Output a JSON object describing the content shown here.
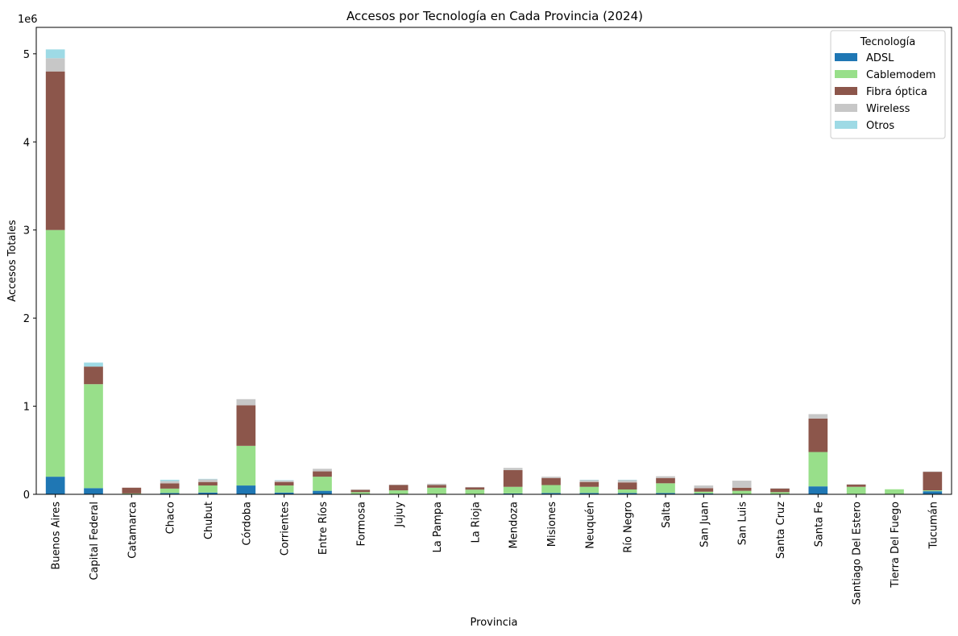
{
  "chart_data": {
    "type": "bar",
    "stacked": true,
    "title": "Accesos por Tecnología en Cada Provincia (2024)",
    "xlabel": "Provincia",
    "ylabel": "Accesos Totales",
    "scale_label": "1e6",
    "ylim": [
      0,
      5300000
    ],
    "yticks": [
      0,
      1000000,
      2000000,
      3000000,
      4000000,
      5000000
    ],
    "ytick_labels": [
      "0",
      "1",
      "2",
      "3",
      "4",
      "5"
    ],
    "legend_title": "Tecnología",
    "legend_position": "top-right",
    "grid": false,
    "categories": [
      "Buenos Aires",
      "Capital Federal",
      "Catamarca",
      "Chaco",
      "Chubut",
      "Córdoba",
      "Corrientes",
      "Entre Ríos",
      "Formosa",
      "Jujuy",
      "La Pampa",
      "La Rioja",
      "Mendoza",
      "Misiones",
      "Neuquén",
      "Río Negro",
      "Salta",
      "San Juan",
      "San Luis",
      "Santa Cruz",
      "Santa Fe",
      "Santiago Del Estero",
      "Tierra Del Fuego",
      "Tucumán"
    ],
    "series": [
      {
        "name": "ADSL",
        "color": "#1f77b4",
        "values": [
          200000,
          70000,
          5000,
          15000,
          20000,
          100000,
          20000,
          40000,
          5000,
          5000,
          5000,
          3000,
          10000,
          15000,
          15000,
          15000,
          15000,
          10000,
          5000,
          5000,
          90000,
          5000,
          2000,
          35000
        ]
      },
      {
        "name": "Cablemodem",
        "color": "#98df8a",
        "values": [
          2800000,
          1180000,
          5000,
          50000,
          80000,
          450000,
          80000,
          160000,
          20000,
          40000,
          70000,
          50000,
          75000,
          90000,
          70000,
          40000,
          110000,
          20000,
          35000,
          20000,
          390000,
          80000,
          55000,
          10000
        ]
      },
      {
        "name": "Fibra óptica",
        "color": "#8c564b",
        "values": [
          1800000,
          200000,
          65000,
          60000,
          40000,
          460000,
          40000,
          60000,
          25000,
          60000,
          30000,
          25000,
          190000,
          80000,
          55000,
          80000,
          60000,
          40000,
          35000,
          40000,
          380000,
          25000,
          0,
          210000
        ]
      },
      {
        "name": "Wireless",
        "color": "#c7c7c7",
        "values": [
          150000,
          0,
          0,
          25000,
          30000,
          70000,
          15000,
          30000,
          5000,
          5000,
          15000,
          5000,
          25000,
          15000,
          20000,
          25000,
          20000,
          30000,
          80000,
          5000,
          50000,
          5000,
          0,
          5000
        ]
      },
      {
        "name": "Otros",
        "color": "#9edae5",
        "values": [
          100000,
          45000,
          0,
          15000,
          5000,
          0,
          5000,
          0,
          0,
          0,
          0,
          0,
          0,
          0,
          5000,
          5000,
          0,
          0,
          0,
          0,
          0,
          0,
          0,
          0
        ]
      }
    ]
  }
}
